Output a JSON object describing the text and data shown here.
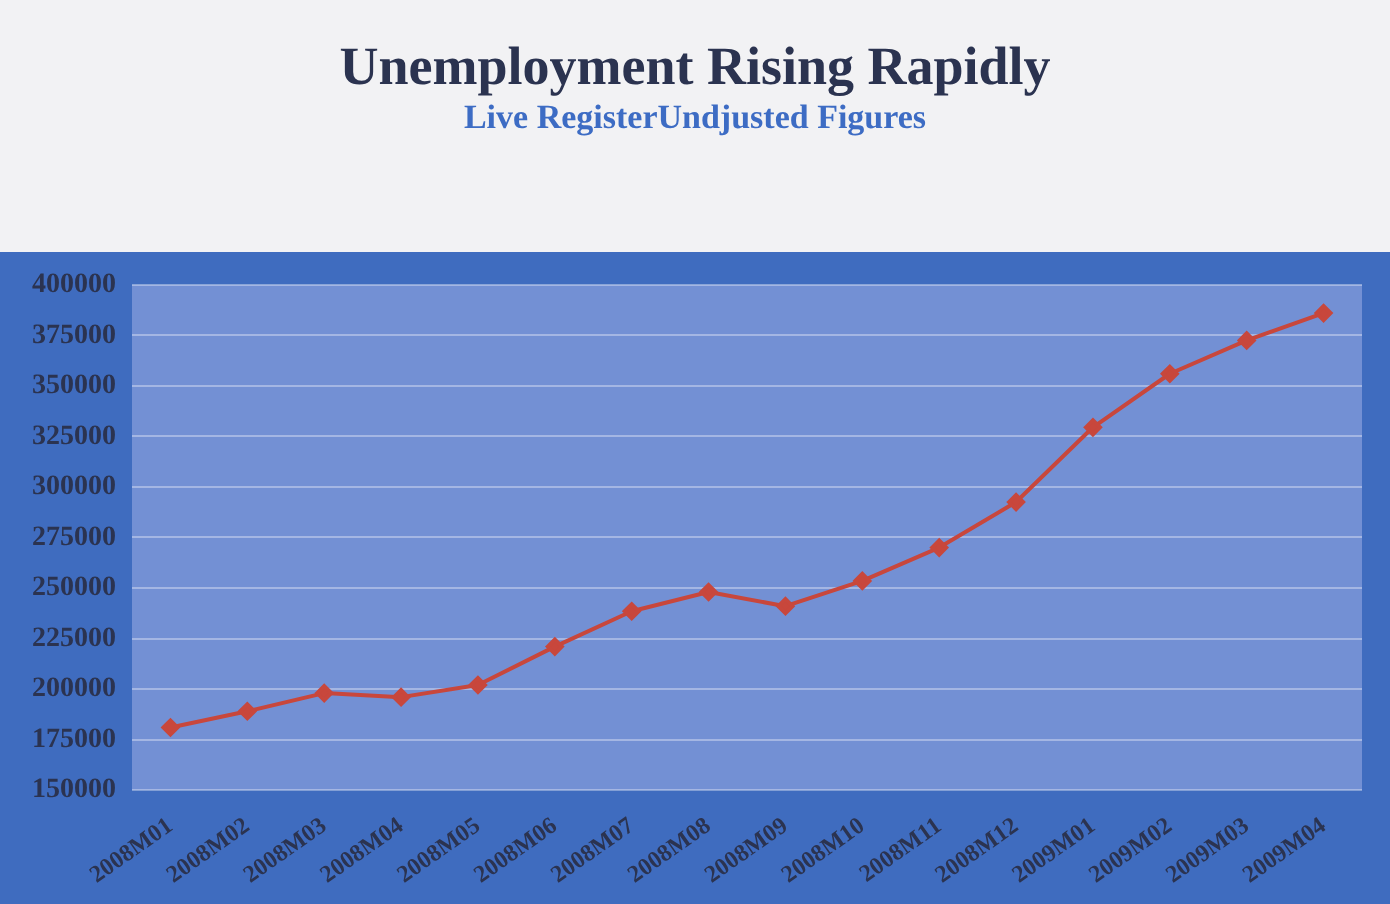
{
  "chart_data": {
    "type": "line",
    "title": "Unemployment Rising Rapidly",
    "subtitle": "Live RegisterUndjusted Figures",
    "categories": [
      "2008M01",
      "2008M02",
      "2008M03",
      "2008M04",
      "2008M05",
      "2008M06",
      "2008M07",
      "2008M08",
      "2008M09",
      "2008M10",
      "2008M11",
      "2008M12",
      "2009M01",
      "2009M02",
      "2009M03",
      "2009M04"
    ],
    "series": [
      {
        "color": "#c8473c",
        "values": [
          181000,
          189000,
          198000,
          196000,
          202000,
          221000,
          238500,
          248000,
          241000,
          253500,
          270000,
          292500,
          329500,
          356000,
          372500,
          386000
        ]
      }
    ],
    "ylim": [
      150000,
      400000
    ],
    "yticks": [
      150000,
      175000,
      200000,
      225000,
      250000,
      275000,
      300000,
      325000,
      350000,
      375000,
      400000
    ],
    "grid": "y",
    "legend": false,
    "marker": "diamond",
    "line_style": "solid"
  }
}
